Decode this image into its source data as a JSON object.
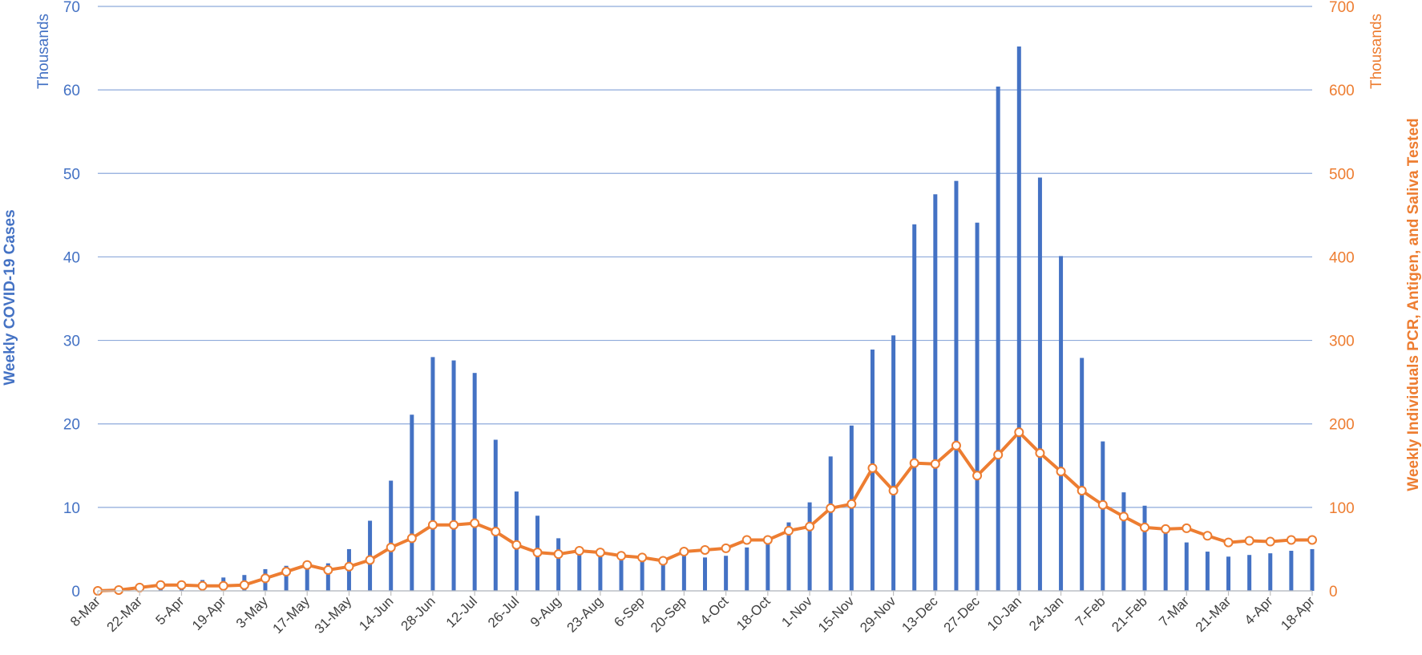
{
  "chart_data": {
    "type": "bar+line",
    "title": "",
    "xlabel": "",
    "grid": true,
    "legend": "none",
    "ylabel_left": "Weekly COVID-19 Cases",
    "ylabel_right": "Weekly Individuals PCR, Antigen, and Saliva Tested",
    "yunit_left": "Thousands",
    "yunit_right": "Thousands",
    "ylim_left": [
      0,
      70
    ],
    "ylim_right": [
      0,
      700
    ],
    "yticks_left": [
      "0",
      "10",
      "20",
      "30",
      "40",
      "50",
      "60",
      "70"
    ],
    "yticks_right": [
      "0",
      "100",
      "200",
      "300",
      "400",
      "500",
      "600",
      "700"
    ],
    "x_tick_labels": [
      "8-Mar",
      "22-Mar",
      "5-Apr",
      "19-Apr",
      "3-May",
      "17-May",
      "31-May",
      "14-Jun",
      "28-Jun",
      "12-Jul",
      "26-Jul",
      "9-Aug",
      "23-Aug",
      "6-Sep",
      "20-Sep",
      "4-Oct",
      "18-Oct",
      "1-Nov",
      "15-Nov",
      "29-Nov",
      "13-Dec",
      "27-Dec",
      "10-Jan",
      "24-Jan",
      "7-Feb",
      "21-Feb",
      "7-Mar",
      "21-Mar",
      "4-Apr",
      "18-Apr"
    ],
    "x": [
      "8-Mar",
      "15-Mar",
      "22-Mar",
      "29-Mar",
      "5-Apr",
      "12-Apr",
      "19-Apr",
      "26-Apr",
      "3-May",
      "10-May",
      "17-May",
      "24-May",
      "31-May",
      "7-Jun",
      "14-Jun",
      "21-Jun",
      "28-Jun",
      "5-Jul",
      "12-Jul",
      "19-Jul",
      "26-Jul",
      "2-Aug",
      "9-Aug",
      "16-Aug",
      "23-Aug",
      "30-Aug",
      "6-Sep",
      "13-Sep",
      "20-Sep",
      "27-Sep",
      "4-Oct",
      "11-Oct",
      "18-Oct",
      "25-Oct",
      "1-Nov",
      "8-Nov",
      "15-Nov",
      "22-Nov",
      "29-Nov",
      "6-Dec",
      "13-Dec",
      "20-Dec",
      "27-Dec",
      "3-Jan",
      "10-Jan",
      "17-Jan",
      "24-Jan",
      "31-Jan",
      "7-Feb",
      "14-Feb",
      "21-Feb",
      "28-Feb",
      "7-Mar",
      "14-Mar",
      "21-Mar",
      "28-Mar",
      "4-Apr",
      "11-Apr",
      "18-Apr"
    ],
    "series": [
      {
        "type": "bar",
        "axis": "left",
        "color": "#4472c4",
        "values": [
          0,
          0.05,
          0.4,
          0.8,
          1.1,
          1.3,
          1.6,
          1.9,
          2.6,
          3.0,
          3.3,
          3.3,
          5.0,
          8.4,
          13.2,
          21.1,
          28.0,
          27.6,
          26.1,
          18.1,
          11.9,
          9.0,
          6.3,
          4.8,
          4.3,
          3.9,
          3.6,
          3.8,
          4.5,
          4.0,
          4.2,
          5.2,
          6.2,
          8.2,
          10.6,
          16.1,
          19.8,
          28.9,
          30.6,
          43.9,
          47.5,
          49.1,
          44.1,
          60.4,
          65.2,
          49.5,
          40.1,
          27.9,
          17.9,
          11.8,
          10.2,
          7.9,
          5.8,
          4.7,
          4.1,
          4.3,
          4.5,
          4.8,
          5.0
        ]
      },
      {
        "type": "line",
        "axis": "right",
        "color": "#ed7d31",
        "values": [
          0,
          1,
          4,
          7,
          7,
          6,
          6,
          7,
          15,
          23,
          31,
          25,
          29,
          37,
          52,
          63,
          79,
          79,
          81,
          71,
          55,
          46,
          44,
          48,
          46,
          42,
          40,
          36,
          47,
          49,
          51,
          61,
          61,
          72,
          77,
          99,
          104,
          147,
          120,
          153,
          152,
          174,
          138,
          163,
          190,
          165,
          143,
          120,
          103,
          89,
          76,
          74,
          75,
          66,
          58,
          60,
          59,
          61,
          61
        ]
      }
    ]
  }
}
